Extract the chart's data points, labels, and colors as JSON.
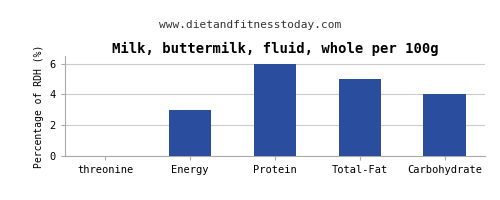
{
  "title": "Milk, buttermilk, fluid, whole per 100g",
  "subtitle": "www.dietandfitnesstoday.com",
  "categories": [
    "threonine",
    "Energy",
    "Protein",
    "Total-Fat",
    "Carbohydrate"
  ],
  "values": [
    0,
    3,
    6,
    5,
    4
  ],
  "bar_color": "#2b4d9e",
  "ylabel": "Percentage of RDH (%)",
  "ylim": [
    0,
    6.5
  ],
  "yticks": [
    0,
    2,
    4,
    6
  ],
  "background_color": "#ffffff",
  "plot_bg_color": "#ffffff",
  "title_fontsize": 10,
  "subtitle_fontsize": 8,
  "ylabel_fontsize": 7,
  "tick_fontsize": 7.5,
  "grid_color": "#cccccc",
  "border_color": "#aaaaaa"
}
